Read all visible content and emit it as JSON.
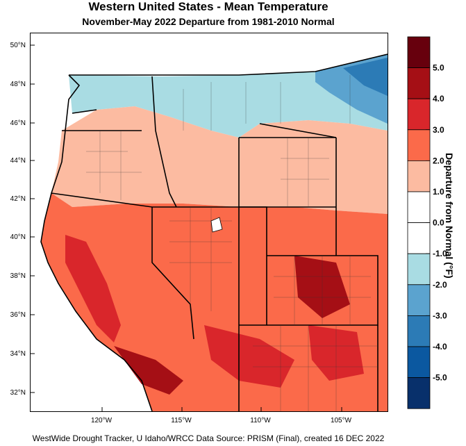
{
  "title": "Western United States - Mean Temperature",
  "subtitle": "November-May 2022  Departure from 1981-2010 Normal",
  "footer": "WestWide Drought Tracker, U Idaho/WRCC Data Source: PRISM (Final), created 16 DEC 2022",
  "map": {
    "lat_labels": [
      "50°N",
      "48°N",
      "46°N",
      "44°N",
      "42°N",
      "40°N",
      "38°N",
      "36°N",
      "34°N",
      "32°N"
    ],
    "lon_labels": [
      "120°W",
      "115°W",
      "110°W",
      "105°W"
    ]
  },
  "legend": {
    "units_label": "Departure from Normal (°F)",
    "bins": [
      {
        "color": "#67000d",
        "label": "5.0"
      },
      {
        "color": "#a50f15",
        "label": "4.0"
      },
      {
        "color": "#d9262b",
        "label": "3.0"
      },
      {
        "color": "#fb6a4a",
        "label": "2.0"
      },
      {
        "color": "#fcbba1",
        "label": "1.0"
      },
      {
        "color": "#ffffff",
        "label": "0.0"
      },
      {
        "color": "#ffffff",
        "label": "-1.0"
      },
      {
        "color": "#a9dce3",
        "label": "-2.0"
      },
      {
        "color": "#5ba3cf",
        "label": "-3.0"
      },
      {
        "color": "#2c7bb6",
        "label": "-4.0"
      },
      {
        "color": "#0b58a0",
        "label": "-5.0"
      },
      {
        "color": "#08306b",
        "label": ""
      }
    ]
  }
}
